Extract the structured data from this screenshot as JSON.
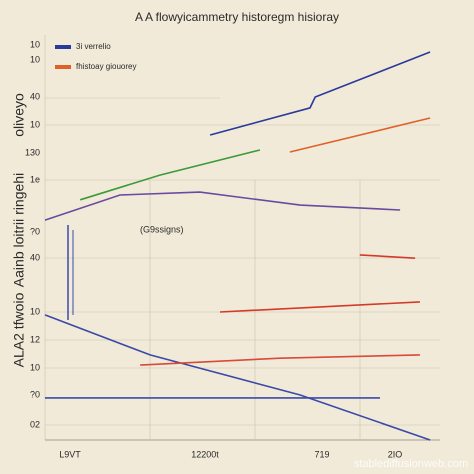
{
  "chart_data": {
    "type": "line",
    "title": "A A flowyicammetry historegm hisioray",
    "annotation": "(G9ssigns)",
    "watermark": "stablediffusionweb.com",
    "y_titles": [
      "oliveyo",
      "Aainb loitrii ringehi",
      "ALA2 tfwoio"
    ],
    "y_labels": [
      "10",
      "10",
      "40",
      "10",
      "130",
      "1e",
      "?0",
      "40",
      "10",
      "12",
      "10",
      "?0",
      "02"
    ],
    "x_labels": [
      "L9VT",
      "12200t",
      "719",
      "2IO"
    ],
    "xlim": [
      0,
      100
    ],
    "ylim": [
      0,
      100
    ],
    "legend": "top-left",
    "series": [
      {
        "name": "3i verrelio",
        "color": "#2a3a9a",
        "x": [
          41.8,
          67.1,
          68.4,
          97.5
        ],
        "values": [
          75.3,
          82.0,
          84.7,
          95.8
        ]
      },
      {
        "name": "fhistoay giouorey",
        "color": "#e0602a",
        "x": [
          62.0,
          97.5
        ],
        "values": [
          71.1,
          79.5
        ]
      },
      {
        "color": "#d43a2a",
        "x": [
          79.7,
          93.7
        ],
        "values": [
          45.7,
          44.9
        ]
      },
      {
        "color": "#d43a2a",
        "x": [
          44.3,
          94.9
        ],
        "values": [
          31.6,
          34.1
        ]
      },
      {
        "color": "#3a4aa8",
        "x": [
          0,
          26.6,
          64.6,
          97.5
        ],
        "values": [
          30.9,
          21.0,
          11.1,
          0
        ]
      },
      {
        "color": "#d84a3a",
        "x": [
          24.1,
          59.5,
          94.9
        ],
        "values": [
          18.5,
          20.2,
          21.0
        ]
      },
      {
        "color": "#6a4aa0",
        "x": [
          0,
          19.0,
          39.2,
          64.6,
          89.9
        ],
        "values": [
          54.3,
          60.5,
          61.2,
          58.0,
          56.8
        ]
      },
      {
        "color": "#3a9a3a",
        "x": [
          8.9,
          29.1,
          54.4
        ],
        "values": [
          59.3,
          65.4,
          71.6
        ]
      },
      {
        "color": "#3a4aa8",
        "x": [
          0,
          84.8
        ],
        "values": [
          10.4,
          10.4
        ]
      }
    ]
  }
}
